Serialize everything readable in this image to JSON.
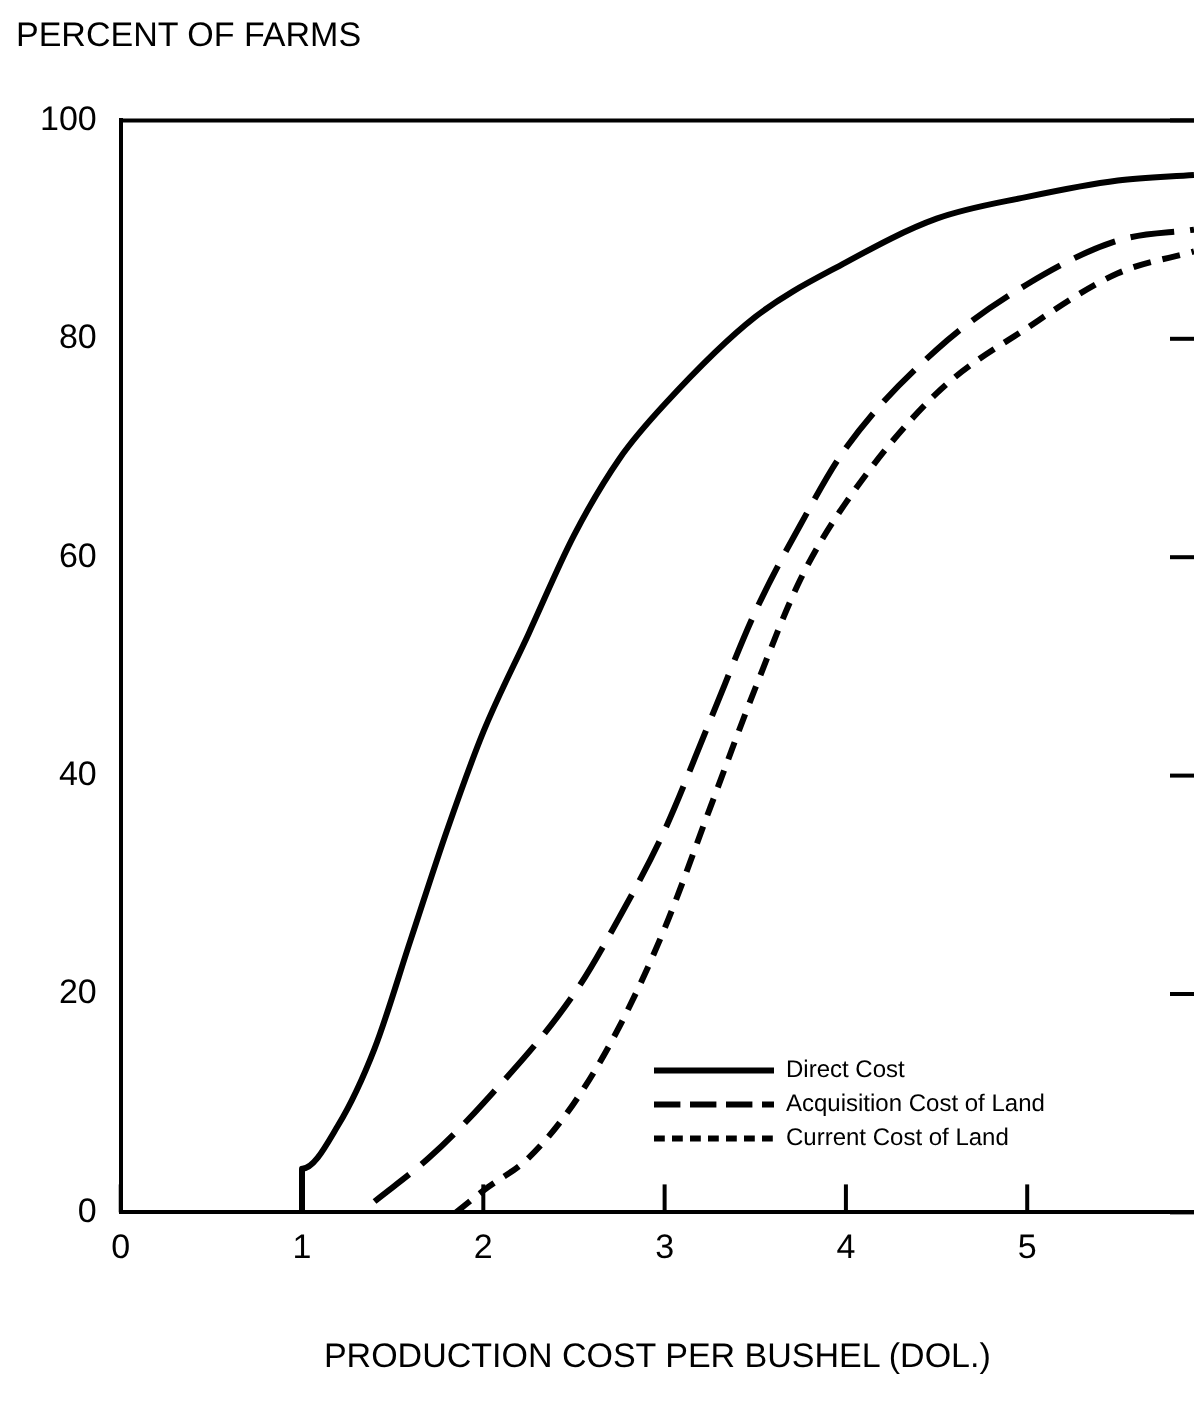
{
  "chart_data": {
    "type": "line",
    "ylabel": "PERCENT OF FARMS",
    "xlabel": "PRODUCTION COST PER BUSHEL (DOL.)",
    "xlim": [
      0,
      5.92
    ],
    "xticks": [
      0,
      1,
      2,
      3,
      4,
      5
    ],
    "ylim": [
      0,
      100
    ],
    "yticks": [
      0,
      20,
      40,
      60,
      80,
      100
    ],
    "grid": false,
    "legend": "bottom right",
    "marker": "none",
    "series": [
      {
        "name": "Direct Cost",
        "color": "#000000",
        "line_style": "solid",
        "x": [
          1,
          1,
          1.2,
          1.4,
          1.6,
          1.8,
          2,
          2.25,
          2.5,
          2.75,
          3,
          3.5,
          4,
          4.5,
          5,
          5.5,
          5.92
        ],
        "values": [
          0,
          4,
          8,
          15,
          25,
          35,
          44,
          53,
          62,
          69,
          74,
          82,
          87,
          91,
          93,
          94.5,
          95
        ]
      },
      {
        "name": "Acquisition Cost of Land",
        "color": "#000000",
        "line_style": "dashed",
        "x": [
          1.4,
          1.7,
          2,
          2.5,
          2.75,
          3,
          3.25,
          3.5,
          3.75,
          4,
          4.5,
          5,
          5.5,
          5.92
        ],
        "values": [
          1,
          5,
          10,
          20,
          27,
          35,
          45,
          55,
          63,
          70,
          79,
          85,
          89,
          90
        ]
      },
      {
        "name": "Current Cost of Land",
        "color": "#000000",
        "line_style": "dashed",
        "x": [
          1.85,
          2,
          2.25,
          2.5,
          2.75,
          3,
          3.25,
          3.5,
          3.75,
          4,
          4.5,
          5,
          5.5,
          5.92
        ],
        "values": [
          0,
          2,
          5,
          10,
          17,
          26,
          37,
          48,
          58,
          65,
          75,
          81,
          86,
          88
        ]
      }
    ]
  }
}
